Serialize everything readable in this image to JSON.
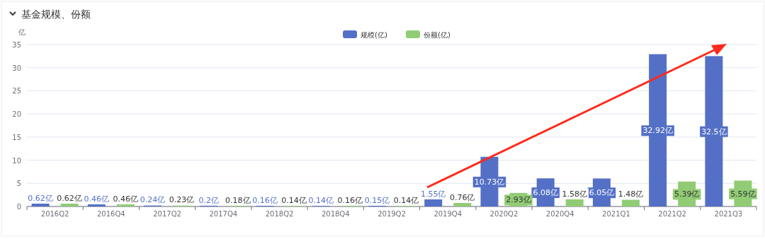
{
  "chart_data": {
    "type": "bar",
    "title": "基金规模、份额",
    "ylabel": "亿",
    "categories": [
      "2016Q2",
      "2016Q4",
      "2017Q2",
      "2017Q4",
      "2018Q2",
      "2018Q4",
      "2019Q2",
      "2019Q4",
      "2020Q2",
      "2020Q4",
      "2021Q1",
      "2021Q2",
      "2021Q3"
    ],
    "series": [
      {
        "name": "规模(亿)",
        "color": "#5470c6",
        "values": [
          0.62,
          0.46,
          0.24,
          0.2,
          0.16,
          0.14,
          0.15,
          1.55,
          10.73,
          6.08,
          6.05,
          32.92,
          32.5
        ],
        "value_labels": [
          "0.62亿",
          "0.46亿",
          "0.24亿",
          "0.2亿",
          "0.16亿",
          "0.14亿",
          "0.15亿",
          "1.55亿",
          "10.73亿",
          "6.08亿",
          "6.05亿",
          "32.92亿",
          "32.5亿"
        ]
      },
      {
        "name": "份额(亿)",
        "color": "#91cc75",
        "values": [
          0.62,
          0.46,
          0.23,
          0.18,
          0.14,
          0.16,
          0.14,
          0.76,
          2.93,
          1.58,
          1.48,
          5.39,
          5.59
        ],
        "value_labels": [
          "0.62亿",
          "0.46亿",
          "0.23亿",
          "0.18亿",
          "0.14亿",
          "0.16亿",
          "0.14亿",
          "0.76亿",
          "2.93亿",
          "1.58亿",
          "1.48亿",
          "5.39亿",
          "5.59亿"
        ]
      }
    ],
    "ylim": [
      0,
      35
    ],
    "yticks": [
      0,
      5,
      10,
      15,
      20,
      25,
      30,
      35
    ],
    "grid": "y",
    "legend": "top"
  }
}
